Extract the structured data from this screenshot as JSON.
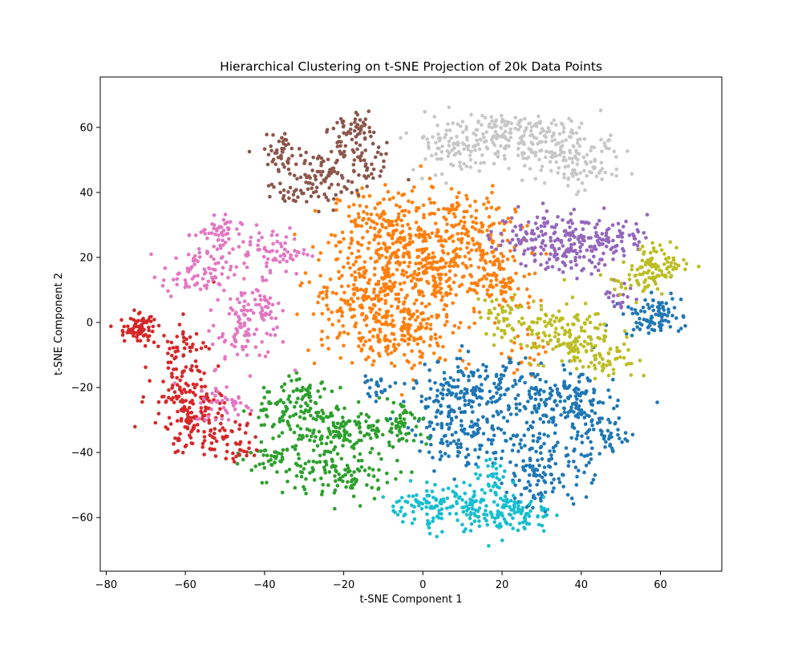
{
  "chart_data": {
    "type": "scatter",
    "title": "Hierarchical Clustering on t-SNE Projection of 20k Data Points",
    "xlabel": "t-SNE Component 1",
    "ylabel": "t-SNE Component 2",
    "xlim": [
      -81.5,
      75.5
    ],
    "ylim": [
      -76.5,
      75.5
    ],
    "xticks": [
      -80,
      -60,
      -40,
      -20,
      0,
      20,
      40,
      60
    ],
    "yticks": [
      -60,
      -40,
      -20,
      0,
      20,
      40,
      60
    ],
    "grid": false,
    "legend": "none",
    "clusters": [
      {
        "color": "#ff7f0e",
        "blobs": [
          [
            -8,
            28,
            10,
            9,
            220
          ],
          [
            10,
            28,
            9,
            8,
            170
          ],
          [
            -15,
            10,
            10,
            8,
            170
          ],
          [
            3,
            14,
            11,
            8,
            200
          ],
          [
            -6,
            -2,
            12,
            8,
            220
          ],
          [
            20,
            12,
            6,
            7,
            80
          ],
          [
            27,
            -10,
            4,
            4,
            25
          ]
        ]
      },
      {
        "color": "#1f77b4",
        "blobs": [
          [
            12,
            -22,
            10,
            7,
            200
          ],
          [
            35,
            -25,
            9,
            7,
            170
          ],
          [
            30,
            -45,
            8,
            8,
            140
          ],
          [
            10,
            -35,
            8,
            6,
            110
          ],
          [
            45,
            -35,
            6,
            5,
            60
          ],
          [
            58,
            2,
            5,
            4,
            90
          ],
          [
            -12,
            -20,
            3,
            2,
            20
          ]
        ]
      },
      {
        "color": "#2ca02c",
        "blobs": [
          [
            -30,
            -22,
            5,
            5,
            60
          ],
          [
            -25,
            -33,
            7,
            6,
            110
          ],
          [
            -20,
            -47,
            9,
            5,
            110
          ],
          [
            -12,
            -32,
            5,
            5,
            50
          ],
          [
            -5,
            -32,
            4,
            4,
            40
          ],
          [
            -38,
            -42,
            5,
            4,
            50
          ],
          [
            -38,
            -28,
            4,
            5,
            35
          ]
        ]
      },
      {
        "color": "#d62728",
        "blobs": [
          [
            -72,
            -2,
            3,
            3,
            80
          ],
          [
            -60,
            -10,
            5,
            7,
            70
          ],
          [
            -58,
            -30,
            7,
            7,
            130
          ],
          [
            -48,
            -37,
            4,
            4,
            40
          ],
          [
            -62,
            -22,
            4,
            3,
            30
          ]
        ]
      },
      {
        "color": "#9467bd",
        "blobs": [
          [
            32,
            27,
            9,
            5,
            130
          ],
          [
            48,
            26,
            6,
            4,
            70
          ],
          [
            37,
            20,
            6,
            4,
            60
          ],
          [
            50,
            8,
            3,
            3,
            20
          ]
        ]
      },
      {
        "color": "#8c564b",
        "blobs": [
          [
            -35,
            52,
            4,
            4,
            50
          ],
          [
            -25,
            45,
            6,
            6,
            70
          ],
          [
            -15,
            50,
            5,
            6,
            60
          ],
          [
            -18,
            60,
            4,
            3,
            40
          ],
          [
            -32,
            40,
            5,
            3,
            30
          ]
        ]
      },
      {
        "color": "#e377c2",
        "blobs": [
          [
            -52,
            27,
            4,
            4,
            50
          ],
          [
            -57,
            15,
            6,
            5,
            80
          ],
          [
            -38,
            22,
            6,
            5,
            70
          ],
          [
            -42,
            5,
            5,
            5,
            60
          ],
          [
            -45,
            -5,
            6,
            6,
            60
          ],
          [
            -50,
            -25,
            5,
            4,
            40
          ]
        ]
      },
      {
        "color": "#c7c7c7",
        "blobs": [
          [
            10,
            55,
            9,
            6,
            130
          ],
          [
            33,
            55,
            10,
            5,
            130
          ],
          [
            38,
            47,
            7,
            4,
            60
          ],
          [
            20,
            60,
            7,
            4,
            60
          ]
        ]
      },
      {
        "color": "#bcbd22",
        "blobs": [
          [
            33,
            -3,
            10,
            6,
            140
          ],
          [
            45,
            -10,
            6,
            5,
            70
          ],
          [
            60,
            18,
            5,
            4,
            80
          ],
          [
            20,
            3,
            4,
            4,
            30
          ],
          [
            52,
            13,
            4,
            3,
            30
          ]
        ]
      },
      {
        "color": "#17becf",
        "blobs": [
          [
            12,
            -57,
            10,
            5,
            160
          ],
          [
            25,
            -60,
            5,
            4,
            50
          ],
          [
            0,
            -56,
            5,
            3,
            40
          ],
          [
            18,
            -48,
            4,
            3,
            30
          ]
        ]
      }
    ]
  },
  "colors": {
    "background": "#ffffff",
    "axes": "#000000"
  }
}
